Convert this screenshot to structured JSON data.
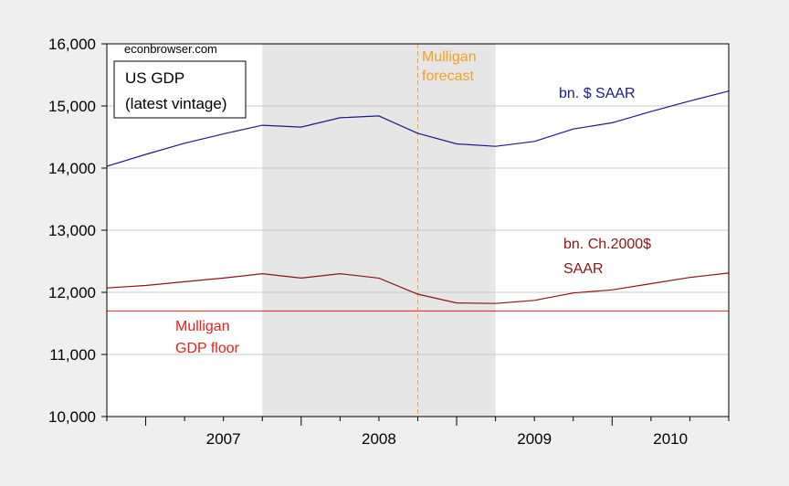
{
  "chart_data": {
    "type": "line",
    "source": "econbrowser.com",
    "legend_box": [
      "US GDP",
      "(latest vintage)"
    ],
    "x_ticks": [
      "2007",
      "2008",
      "2009",
      "2010"
    ],
    "y_ticks": [
      "10,000",
      "11,000",
      "12,000",
      "13,000",
      "14,000",
      "15,000",
      "16,000"
    ],
    "ylim": [
      10000,
      16000
    ],
    "xlim": [
      "2006-Q4",
      "2010-Q4"
    ],
    "recession_shading": [
      "2007-Q4",
      "2009-Q2"
    ],
    "forecast_line": {
      "x": "2008-Q4",
      "label": [
        "Mulligan",
        "forecast"
      ],
      "color": "#f5a020"
    },
    "floor_line": {
      "y": 11700,
      "label": [
        "Mulligan",
        "GDP floor"
      ],
      "color": "#e8201c"
    },
    "x": [
      "2006-Q4",
      "2007-Q1",
      "2007-Q2",
      "2007-Q3",
      "2007-Q4",
      "2008-Q1",
      "2008-Q2",
      "2008-Q3",
      "2008-Q4",
      "2009-Q1",
      "2009-Q2",
      "2009-Q3",
      "2009-Q4",
      "2010-Q1",
      "2010-Q2",
      "2010-Q3",
      "2010-Q4"
    ],
    "series": [
      {
        "name": "bn. $ SAAR",
        "label": [
          "bn. $ SAAR"
        ],
        "color": "#1a1a8c",
        "values": [
          14030,
          14220,
          14400,
          14550,
          14690,
          14660,
          14810,
          14840,
          14560,
          14390,
          14350,
          14430,
          14630,
          14730,
          14910,
          15080,
          15240
        ]
      },
      {
        "name": "bn. Ch.2000$ SAAR",
        "label": [
          "bn. Ch.2000$",
          "SAAR"
        ],
        "color": "#8c1414",
        "values": [
          12070,
          12110,
          12170,
          12230,
          12300,
          12230,
          12300,
          12230,
          11970,
          11830,
          11820,
          11870,
          11990,
          12040,
          12140,
          12240,
          12310
        ]
      }
    ]
  }
}
